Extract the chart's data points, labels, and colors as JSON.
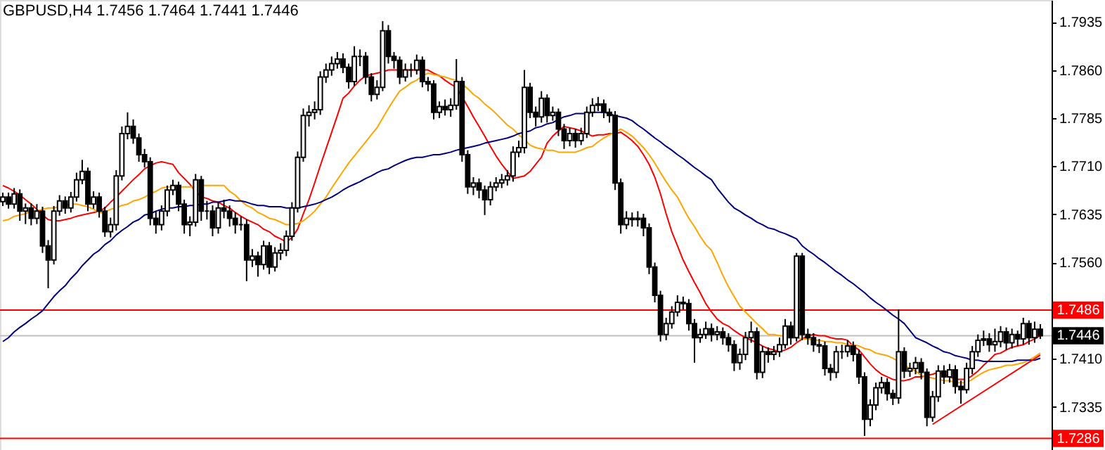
{
  "chart_data": {
    "type": "candlestick",
    "title": "GBPUSD,H4  1.7456 1.7464 1.7441 1.7446",
    "categories": [
      null,
      null,
      null,
      null,
      null,
      null,
      null,
      null,
      null,
      null,
      null,
      null,
      null,
      null,
      null,
      null,
      null,
      null,
      null,
      null,
      null,
      null,
      null,
      null,
      null,
      null,
      null,
      null,
      null,
      null,
      null,
      null,
      null,
      null,
      null,
      null,
      null,
      null,
      null,
      null,
      null,
      null,
      null,
      null,
      null,
      null,
      null,
      null,
      null,
      null,
      null,
      null,
      null,
      null,
      null,
      null,
      null,
      null,
      null,
      null,
      null,
      null,
      null,
      null,
      null,
      null,
      null,
      null,
      null,
      null,
      null,
      null,
      null,
      null,
      null,
      null,
      null,
      null,
      null,
      null,
      null,
      null,
      null,
      null,
      null,
      null,
      null,
      null,
      null,
      null,
      null,
      null,
      null,
      null,
      null,
      null,
      null,
      null,
      null,
      null,
      null,
      null,
      null,
      null,
      null,
      null,
      null,
      null,
      null,
      null,
      null,
      null,
      null,
      null,
      null,
      null,
      null,
      null,
      null,
      null,
      null,
      null,
      null,
      null,
      null,
      null,
      null,
      null,
      null,
      null,
      null,
      null,
      null,
      null,
      null,
      null,
      null,
      null,
      null,
      null,
      null,
      null,
      null,
      null,
      null,
      null,
      null,
      null,
      null,
      null,
      null,
      null,
      null,
      null,
      null,
      null,
      null,
      null,
      null,
      null,
      null,
      null,
      null,
      null,
      null,
      null,
      null,
      null,
      null,
      null,
      null,
      null,
      null,
      null,
      null,
      null,
      null,
      null,
      null,
      null,
      null,
      null,
      null,
      null
    ],
    "ohlc": [
      [
        1.7655,
        1.7669,
        1.7648,
        1.7662
      ],
      [
        1.7662,
        1.7669,
        1.7644,
        1.7651
      ],
      [
        1.7651,
        1.7676,
        1.7644,
        1.7667
      ],
      [
        1.7667,
        1.7674,
        1.7625,
        1.764
      ],
      [
        1.764,
        1.7652,
        1.762,
        1.7645
      ],
      [
        1.7645,
        1.7652,
        1.7618,
        1.7629
      ],
      [
        1.7629,
        1.7651,
        1.762,
        1.764
      ],
      [
        1.764,
        1.7647,
        1.7575,
        1.7586
      ],
      [
        1.7586,
        1.7595,
        1.752,
        1.7564
      ],
      [
        1.7564,
        1.7648,
        1.7557,
        1.764
      ],
      [
        1.764,
        1.7665,
        1.7633,
        1.7656
      ],
      [
        1.7656,
        1.7663,
        1.7636,
        1.7645
      ],
      [
        1.7645,
        1.767,
        1.7638,
        1.7662
      ],
      [
        1.7662,
        1.77,
        1.7655,
        1.7689
      ],
      [
        1.7689,
        1.772,
        1.7682,
        1.7702
      ],
      [
        1.7702,
        1.7708,
        1.764,
        1.7651
      ],
      [
        1.7651,
        1.7671,
        1.7644,
        1.7662
      ],
      [
        1.7662,
        1.7669,
        1.763,
        1.764
      ],
      [
        1.764,
        1.7647,
        1.76,
        1.7608
      ],
      [
        1.7608,
        1.763,
        1.7599,
        1.7619
      ],
      [
        1.7619,
        1.7704,
        1.761,
        1.7695
      ],
      [
        1.7695,
        1.7772,
        1.7688,
        1.7761
      ],
      [
        1.7761,
        1.7794,
        1.7752,
        1.7772
      ],
      [
        1.7772,
        1.7783,
        1.7745,
        1.7754
      ],
      [
        1.7754,
        1.7761,
        1.7717,
        1.7728
      ],
      [
        1.7728,
        1.7737,
        1.7708,
        1.7717
      ],
      [
        1.7717,
        1.7724,
        1.7618,
        1.7629
      ],
      [
        1.7629,
        1.764,
        1.7605,
        1.7619
      ],
      [
        1.7619,
        1.7649,
        1.761,
        1.764
      ],
      [
        1.764,
        1.768,
        1.7632,
        1.7673
      ],
      [
        1.7673,
        1.7689,
        1.7665,
        1.768
      ],
      [
        1.768,
        1.7686,
        1.764,
        1.7651
      ],
      [
        1.7651,
        1.7658,
        1.7605,
        1.7619
      ],
      [
        1.7619,
        1.7632,
        1.7601,
        1.7623
      ],
      [
        1.7623,
        1.7698,
        1.7616,
        1.7689
      ],
      [
        1.7689,
        1.7695,
        1.7625,
        1.764
      ],
      [
        1.764,
        1.7656,
        1.7627,
        1.764
      ],
      [
        1.764,
        1.7649,
        1.7601,
        1.7614
      ],
      [
        1.7614,
        1.7654,
        1.7605,
        1.7645
      ],
      [
        1.7645,
        1.7658,
        1.7629,
        1.764
      ],
      [
        1.764,
        1.7649,
        1.7616,
        1.7629
      ],
      [
        1.7629,
        1.7638,
        1.7605,
        1.7619
      ],
      [
        1.7619,
        1.7632,
        1.761,
        1.7619
      ],
      [
        1.7619,
        1.7627,
        1.7531,
        1.7564
      ],
      [
        1.7564,
        1.7581,
        1.7553,
        1.757
      ],
      [
        1.757,
        1.7577,
        1.7538,
        1.7557
      ],
      [
        1.7557,
        1.7594,
        1.7549,
        1.7586
      ],
      [
        1.7586,
        1.7592,
        1.7542,
        1.7553
      ],
      [
        1.7553,
        1.7584,
        1.7546,
        1.7575
      ],
      [
        1.7575,
        1.759,
        1.7564,
        1.7579
      ],
      [
        1.7579,
        1.761,
        1.757,
        1.7601
      ],
      [
        1.7601,
        1.7654,
        1.7594,
        1.7645
      ],
      [
        1.7645,
        1.7733,
        1.7638,
        1.7724
      ],
      [
        1.7724,
        1.78,
        1.7717,
        1.7789
      ],
      [
        1.7789,
        1.7805,
        1.7772,
        1.7794
      ],
      [
        1.7794,
        1.7811,
        1.7783,
        1.7798
      ],
      [
        1.7798,
        1.7858,
        1.779,
        1.7849
      ],
      [
        1.7849,
        1.787,
        1.784,
        1.786
      ],
      [
        1.786,
        1.7881,
        1.7851,
        1.787
      ],
      [
        1.787,
        1.7888,
        1.7862,
        1.7877
      ],
      [
        1.7877,
        1.7886,
        1.7855,
        1.7864
      ],
      [
        1.7864,
        1.787,
        1.7831,
        1.7842
      ],
      [
        1.7842,
        1.7897,
        1.7835,
        1.7881
      ],
      [
        1.7881,
        1.7892,
        1.7866,
        1.7881
      ],
      [
        1.7881,
        1.7888,
        1.7838,
        1.7849
      ],
      [
        1.7849,
        1.7855,
        1.7811,
        1.7822
      ],
      [
        1.7822,
        1.7844,
        1.7814,
        1.7833
      ],
      [
        1.7833,
        1.7936,
        1.7827,
        1.7921
      ],
      [
        1.7921,
        1.793,
        1.787,
        1.7881
      ],
      [
        1.7881,
        1.7888,
        1.7862,
        1.7875
      ],
      [
        1.7875,
        1.7881,
        1.7838,
        1.7849
      ],
      [
        1.7849,
        1.787,
        1.7842,
        1.786
      ],
      [
        1.786,
        1.787,
        1.7849,
        1.786
      ],
      [
        1.786,
        1.7884,
        1.7853,
        1.7875
      ],
      [
        1.7875,
        1.7881,
        1.7833,
        1.7842
      ],
      [
        1.7842,
        1.7849,
        1.7827,
        1.7838
      ],
      [
        1.7838,
        1.7844,
        1.7783,
        1.7794
      ],
      [
        1.7794,
        1.7811,
        1.7785,
        1.7803
      ],
      [
        1.7803,
        1.7814,
        1.7789,
        1.7798
      ],
      [
        1.7798,
        1.7816,
        1.7787,
        1.7805
      ],
      [
        1.7805,
        1.7877,
        1.7798,
        1.7842
      ],
      [
        1.7842,
        1.7849,
        1.7717,
        1.7728
      ],
      [
        1.7728,
        1.7735,
        1.7667,
        1.7678
      ],
      [
        1.7678,
        1.7693,
        1.7665,
        1.7684
      ],
      [
        1.7684,
        1.7691,
        1.766,
        1.7673
      ],
      [
        1.7673,
        1.768,
        1.7634,
        1.7658
      ],
      [
        1.7658,
        1.7686,
        1.7649,
        1.7678
      ],
      [
        1.7678,
        1.7693,
        1.7671,
        1.7684
      ],
      [
        1.7684,
        1.7698,
        1.7676,
        1.7689
      ],
      [
        1.7689,
        1.7704,
        1.768,
        1.7695
      ],
      [
        1.7695,
        1.7741,
        1.7686,
        1.7732
      ],
      [
        1.7732,
        1.775,
        1.7724,
        1.7739
      ],
      [
        1.7739,
        1.786,
        1.773,
        1.7833
      ],
      [
        1.7833,
        1.784,
        1.7785,
        1.7794
      ],
      [
        1.7794,
        1.7803,
        1.7772,
        1.7787
      ],
      [
        1.7787,
        1.7827,
        1.7778,
        1.7816
      ],
      [
        1.7816,
        1.7822,
        1.7778,
        1.7789
      ],
      [
        1.7789,
        1.7803,
        1.7781,
        1.7794
      ],
      [
        1.7794,
        1.78,
        1.7757,
        1.7768
      ],
      [
        1.7768,
        1.7776,
        1.7737,
        1.775
      ],
      [
        1.775,
        1.777,
        1.7741,
        1.7761
      ],
      [
        1.7761,
        1.7768,
        1.7739,
        1.775
      ],
      [
        1.775,
        1.777,
        1.7743,
        1.7761
      ],
      [
        1.7761,
        1.7803,
        1.7754,
        1.7794
      ],
      [
        1.7794,
        1.7816,
        1.7787,
        1.7805
      ],
      [
        1.7805,
        1.7818,
        1.7796,
        1.7807
      ],
      [
        1.7807,
        1.7814,
        1.7785,
        1.7794
      ],
      [
        1.7794,
        1.78,
        1.7778,
        1.7789
      ],
      [
        1.7789,
        1.7796,
        1.7673,
        1.7684
      ],
      [
        1.7684,
        1.7691,
        1.7605,
        1.7619
      ],
      [
        1.7619,
        1.764,
        1.7612,
        1.7629
      ],
      [
        1.7629,
        1.7638,
        1.7616,
        1.7627
      ],
      [
        1.7627,
        1.764,
        1.7616,
        1.7629
      ],
      [
        1.7629,
        1.7636,
        1.7601,
        1.7614
      ],
      [
        1.7614,
        1.7621,
        1.7542,
        1.7553
      ],
      [
        1.7553,
        1.756,
        1.7498,
        1.7509
      ],
      [
        1.7509,
        1.7516,
        1.7437,
        1.7448
      ],
      [
        1.7448,
        1.7474,
        1.7439,
        1.7465
      ],
      [
        1.7465,
        1.7492,
        1.7457,
        1.7483
      ],
      [
        1.7483,
        1.7509,
        1.7476,
        1.7498
      ],
      [
        1.7498,
        1.7507,
        1.7487,
        1.7496
      ],
      [
        1.7496,
        1.7503,
        1.7454,
        1.7465
      ],
      [
        1.7465,
        1.7472,
        1.7404,
        1.7443
      ],
      [
        1.7443,
        1.7457,
        1.7435,
        1.7448
      ],
      [
        1.7448,
        1.7468,
        1.7441,
        1.7457
      ],
      [
        1.7457,
        1.7465,
        1.7437,
        1.7448
      ],
      [
        1.7448,
        1.7461,
        1.7439,
        1.7452
      ],
      [
        1.7452,
        1.7459,
        1.7432,
        1.7443
      ],
      [
        1.7443,
        1.745,
        1.7421,
        1.7432
      ],
      [
        1.7432,
        1.7439,
        1.7391,
        1.7404
      ],
      [
        1.7404,
        1.7426,
        1.7393,
        1.7417
      ],
      [
        1.7417,
        1.7452,
        1.7408,
        1.7443
      ],
      [
        1.7443,
        1.7468,
        1.7435,
        1.7452
      ],
      [
        1.7452,
        1.7459,
        1.7378,
        1.7389
      ],
      [
        1.7389,
        1.743,
        1.738,
        1.7421
      ],
      [
        1.7421,
        1.7428,
        1.7404,
        1.7417
      ],
      [
        1.7417,
        1.743,
        1.7408,
        1.7421
      ],
      [
        1.7421,
        1.7443,
        1.7413,
        1.7432
      ],
      [
        1.7432,
        1.7472,
        1.7426,
        1.7461
      ],
      [
        1.7461,
        1.7468,
        1.7432,
        1.7443
      ],
      [
        1.7443,
        1.7575,
        1.7437,
        1.757
      ],
      [
        1.757,
        1.7575,
        1.7439,
        1.7448
      ],
      [
        1.7448,
        1.7457,
        1.7432,
        1.7443
      ],
      [
        1.7443,
        1.745,
        1.7421,
        1.7432
      ],
      [
        1.7432,
        1.7441,
        1.7419,
        1.743
      ],
      [
        1.743,
        1.7437,
        1.7384,
        1.7395
      ],
      [
        1.7395,
        1.7402,
        1.7376,
        1.7389
      ],
      [
        1.7389,
        1.743,
        1.738,
        1.7421
      ],
      [
        1.7421,
        1.7432,
        1.741,
        1.7421
      ],
      [
        1.7421,
        1.7439,
        1.7413,
        1.743
      ],
      [
        1.743,
        1.7437,
        1.7406,
        1.7417
      ],
      [
        1.7417,
        1.7424,
        1.7371,
        1.7382
      ],
      [
        1.7382,
        1.7389,
        1.729,
        1.7316
      ],
      [
        1.7316,
        1.7347,
        1.7305,
        1.7338
      ],
      [
        1.7338,
        1.7373,
        1.733,
        1.7365
      ],
      [
        1.7365,
        1.7382,
        1.7356,
        1.7373
      ],
      [
        1.7373,
        1.738,
        1.7345,
        1.7356
      ],
      [
        1.7356,
        1.7362,
        1.7338,
        1.7349
      ],
      [
        1.7349,
        1.7487,
        1.734,
        1.7421
      ],
      [
        1.7421,
        1.7428,
        1.738,
        1.7391
      ],
      [
        1.7391,
        1.7404,
        1.7382,
        1.7395
      ],
      [
        1.7395,
        1.7413,
        1.7386,
        1.7404
      ],
      [
        1.7404,
        1.7411,
        1.7378,
        1.7389
      ],
      [
        1.7389,
        1.7395,
        1.7305,
        1.7319
      ],
      [
        1.7319,
        1.736,
        1.7312,
        1.7351
      ],
      [
        1.7351,
        1.74,
        1.7343,
        1.7391
      ],
      [
        1.7391,
        1.74,
        1.7371,
        1.7382
      ],
      [
        1.7382,
        1.7402,
        1.7373,
        1.7393
      ],
      [
        1.7393,
        1.74,
        1.7356,
        1.7367
      ],
      [
        1.7367,
        1.7376,
        1.734,
        1.7362
      ],
      [
        1.7362,
        1.7404,
        1.7356,
        1.7395
      ],
      [
        1.7395,
        1.743,
        1.7386,
        1.7421
      ],
      [
        1.7421,
        1.7448,
        1.7413,
        1.7439
      ],
      [
        1.7439,
        1.7454,
        1.743,
        1.7441
      ],
      [
        1.7441,
        1.745,
        1.7421,
        1.7432
      ],
      [
        1.7432,
        1.7457,
        1.7421,
        1.7437
      ],
      [
        1.7437,
        1.7461,
        1.7428,
        1.7452
      ],
      [
        1.7452,
        1.7459,
        1.7424,
        1.7435
      ],
      [
        1.7435,
        1.7457,
        1.7426,
        1.7448
      ],
      [
        1.7448,
        1.7454,
        1.743,
        1.7441
      ],
      [
        1.7441,
        1.7474,
        1.7432,
        1.7465
      ],
      [
        1.7465,
        1.747,
        1.7432,
        1.7443
      ],
      [
        1.7443,
        1.7468,
        1.7435,
        1.7456
      ],
      [
        1.7456,
        1.7464,
        1.7441,
        1.7446
      ]
    ],
    "series": [
      {
        "type": "line",
        "color": "#ff0000",
        "values": [
          1.768,
          1.7676,
          1.7671,
          1.7665,
          1.7658,
          1.7651,
          1.7643,
          1.7634,
          1.7627,
          1.7625,
          1.7625,
          1.7627,
          1.7629,
          1.7632,
          1.7634,
          1.7636,
          1.7638,
          1.764,
          1.7645,
          1.7654,
          1.7662,
          1.7671,
          1.768,
          1.7689,
          1.7697,
          1.7706,
          1.7711,
          1.7715,
          1.7717,
          1.7715,
          1.7713,
          1.77,
          1.7691,
          1.7682,
          1.7671,
          1.7662,
          1.766,
          1.7656,
          1.7654,
          1.7649,
          1.7645,
          1.7638,
          1.7632,
          1.7627,
          1.7623,
          1.7619,
          1.7612,
          1.7608,
          1.7601,
          1.7597,
          1.7592,
          1.7599,
          1.7612,
          1.7636,
          1.7658,
          1.7684,
          1.7711,
          1.7737,
          1.7763,
          1.7789,
          1.7816,
          1.7824,
          1.7835,
          1.7844,
          1.7851,
          1.7853,
          1.7855,
          1.7857,
          1.786,
          1.786,
          1.786,
          1.786,
          1.786,
          1.786,
          1.786,
          1.786,
          1.7855,
          1.7851,
          1.7844,
          1.7838,
          1.7833,
          1.7818,
          1.7803,
          1.7787,
          1.7772,
          1.7757,
          1.7741,
          1.7726,
          1.7713,
          1.7702,
          1.7691,
          1.7693,
          1.7695,
          1.7702,
          1.7713,
          1.7724,
          1.7746,
          1.7757,
          1.7765,
          1.7772,
          1.777,
          1.7768,
          1.7765,
          1.7761,
          1.7757,
          1.7759,
          1.7759,
          1.7761,
          1.7761,
          1.7763,
          1.7757,
          1.775,
          1.7741,
          1.7728,
          1.7713,
          1.7693,
          1.7667,
          1.7636,
          1.7608,
          1.7586,
          1.7564,
          1.7546,
          1.7529,
          1.7513,
          1.7496,
          1.7483,
          1.7472,
          1.7465,
          1.7461,
          1.7454,
          1.7448,
          1.7443,
          1.7439,
          1.7435,
          1.743,
          1.7426,
          1.7424,
          1.7421,
          1.7424,
          1.7428,
          1.7435,
          1.7441,
          1.7446,
          1.7448,
          1.7446,
          1.7446,
          1.7443,
          1.7441,
          1.7441,
          1.7439,
          1.743,
          1.7424,
          1.7413,
          1.7402,
          1.7393,
          1.7386,
          1.7382,
          1.7378,
          1.7376,
          1.7376,
          1.7378,
          1.7382,
          1.7382,
          1.7384,
          1.7386,
          1.7389,
          1.7386,
          1.7382,
          1.7378,
          1.7378,
          1.7378,
          1.7384,
          1.7391,
          1.74,
          1.7408,
          1.7417,
          1.7419,
          1.7424,
          1.7428,
          1.743,
          1.7432,
          1.7437,
          1.7441,
          1.7446
        ]
      },
      {
        "type": "line",
        "color": "#ffa500",
        "values": [
          1.7625,
          1.7627,
          1.7632,
          1.7634,
          1.7636,
          1.764,
          1.764,
          1.7643,
          1.7645,
          1.7645,
          1.7647,
          1.7649,
          1.7651,
          1.7651,
          1.7649,
          1.7647,
          1.7643,
          1.7638,
          1.7638,
          1.7643,
          1.7645,
          1.7649,
          1.7651,
          1.7656,
          1.7658,
          1.7662,
          1.7667,
          1.7671,
          1.7676,
          1.7678,
          1.7678,
          1.7678,
          1.7678,
          1.7678,
          1.7678,
          1.768,
          1.768,
          1.768,
          1.768,
          1.768,
          1.7671,
          1.7665,
          1.7656,
          1.7649,
          1.7645,
          1.7638,
          1.7634,
          1.7629,
          1.7627,
          1.7623,
          1.7619,
          1.7619,
          1.7621,
          1.7625,
          1.7632,
          1.764,
          1.7651,
          1.7662,
          1.7676,
          1.7689,
          1.7702,
          1.7715,
          1.7726,
          1.7737,
          1.7748,
          1.7759,
          1.777,
          1.7785,
          1.78,
          1.7814,
          1.7827,
          1.7833,
          1.784,
          1.7844,
          1.7851,
          1.7855,
          1.7853,
          1.7851,
          1.7849,
          1.7846,
          1.7844,
          1.7838,
          1.7831,
          1.7822,
          1.7816,
          1.7807,
          1.78,
          1.7792,
          1.7783,
          1.7774,
          1.7768,
          1.7759,
          1.7752,
          1.7743,
          1.7739,
          1.7737,
          1.7735,
          1.7735,
          1.7732,
          1.7732,
          1.7732,
          1.7732,
          1.7735,
          1.7739,
          1.7741,
          1.7748,
          1.7754,
          1.7759,
          1.7763,
          1.7768,
          1.7763,
          1.7757,
          1.7748,
          1.7739,
          1.7728,
          1.7715,
          1.77,
          1.7686,
          1.7673,
          1.7662,
          1.7645,
          1.7629,
          1.7616,
          1.7601,
          1.7588,
          1.7579,
          1.756,
          1.754,
          1.7522,
          1.7507,
          1.7492,
          1.7483,
          1.7474,
          1.7465,
          1.7457,
          1.7448,
          1.7448,
          1.7446,
          1.7446,
          1.7443,
          1.7443,
          1.7441,
          1.7441,
          1.7439,
          1.7439,
          1.7437,
          1.7437,
          1.7435,
          1.7435,
          1.7432,
          1.7432,
          1.743,
          1.7426,
          1.7424,
          1.7419,
          1.7417,
          1.7415,
          1.7411,
          1.7406,
          1.74,
          1.7395,
          1.7391,
          1.7384,
          1.7382,
          1.738,
          1.7378,
          1.7376,
          1.7376,
          1.7373,
          1.7373,
          1.7373,
          1.7378,
          1.7384,
          1.7389,
          1.7393,
          1.7395,
          1.7397,
          1.74,
          1.74,
          1.7402,
          1.7404,
          1.7408,
          1.7413,
          1.7419
        ]
      },
      {
        "type": "line",
        "color": "#000080",
        "values": [
          1.7437,
          1.7443,
          1.7452,
          1.7459,
          1.7465,
          1.7472,
          1.7478,
          1.7485,
          1.7496,
          1.7507,
          1.7516,
          1.7524,
          1.7535,
          1.7544,
          1.7555,
          1.7564,
          1.7573,
          1.7579,
          1.7588,
          1.7594,
          1.7603,
          1.761,
          1.7616,
          1.7623,
          1.7627,
          1.7634,
          1.7636,
          1.764,
          1.7643,
          1.7645,
          1.7645,
          1.7647,
          1.7647,
          1.7649,
          1.7649,
          1.7651,
          1.7651,
          1.7654,
          1.7654,
          1.7656,
          1.7658,
          1.7656,
          1.7656,
          1.7654,
          1.7651,
          1.7649,
          1.7649,
          1.7647,
          1.7647,
          1.7647,
          1.7645,
          1.7645,
          1.7645,
          1.7647,
          1.7649,
          1.7651,
          1.7654,
          1.7658,
          1.7662,
          1.7667,
          1.7673,
          1.7678,
          1.7682,
          1.7686,
          1.7691,
          1.7695,
          1.77,
          1.7704,
          1.7706,
          1.7711,
          1.7715,
          1.7719,
          1.7722,
          1.7724,
          1.7724,
          1.7726,
          1.7728,
          1.7728,
          1.773,
          1.7732,
          1.7735,
          1.7737,
          1.7739,
          1.7741,
          1.7743,
          1.7746,
          1.7748,
          1.775,
          1.7752,
          1.7754,
          1.7757,
          1.7761,
          1.7763,
          1.7765,
          1.777,
          1.7772,
          1.7776,
          1.7778,
          1.7783,
          1.7787,
          1.7789,
          1.7792,
          1.7792,
          1.7792,
          1.7794,
          1.7794,
          1.7794,
          1.7792,
          1.7789,
          1.7787,
          1.7785,
          1.7781,
          1.7774,
          1.7768,
          1.7761,
          1.7754,
          1.7748,
          1.7741,
          1.7735,
          1.7728,
          1.7722,
          1.7715,
          1.7708,
          1.7702,
          1.7695,
          1.7689,
          1.7676,
          1.7665,
          1.7654,
          1.7645,
          1.764,
          1.7634,
          1.7629,
          1.7623,
          1.7619,
          1.7614,
          1.7612,
          1.7608,
          1.7605,
          1.7601,
          1.7597,
          1.7586,
          1.7579,
          1.7573,
          1.7566,
          1.756,
          1.7553,
          1.7546,
          1.754,
          1.7533,
          1.7527,
          1.752,
          1.7513,
          1.7505,
          1.7498,
          1.7492,
          1.7485,
          1.7478,
          1.7472,
          1.7465,
          1.7454,
          1.7443,
          1.7439,
          1.7435,
          1.743,
          1.7426,
          1.7421,
          1.7419,
          1.7415,
          1.7413,
          1.7411,
          1.7408,
          1.7408,
          1.7406,
          1.7406,
          1.7406,
          1.7406,
          1.7406,
          1.7406,
          1.7408,
          1.7408,
          1.7408,
          1.7408,
          1.7411
        ]
      },
      {
        "type": "line",
        "color": "#ff0000",
        "values": [
          null,
          null,
          null,
          null,
          null,
          null,
          null,
          null,
          null,
          null,
          null,
          null,
          null,
          null,
          null,
          null,
          null,
          null,
          null,
          null,
          null,
          null,
          null,
          null,
          null,
          null,
          null,
          null,
          null,
          null,
          null,
          null,
          null,
          null,
          null,
          null,
          null,
          null,
          null,
          null,
          null,
          null,
          null,
          null,
          null,
          null,
          null,
          null,
          null,
          null,
          null,
          null,
          null,
          null,
          null,
          null,
          null,
          null,
          null,
          null,
          null,
          null,
          null,
          null,
          null,
          null,
          null,
          null,
          null,
          null,
          null,
          null,
          null,
          null,
          null,
          null,
          null,
          null,
          null,
          null,
          null,
          null,
          null,
          null,
          null,
          null,
          null,
          null,
          null,
          null,
          null,
          null,
          null,
          null,
          null,
          null,
          null,
          null,
          null,
          null,
          null,
          null,
          null,
          null,
          null,
          null,
          null,
          null,
          null,
          null,
          null,
          null,
          null,
          null,
          null,
          null,
          null,
          null,
          null,
          null,
          null,
          null,
          null,
          null,
          null,
          null,
          null,
          null,
          null,
          null,
          null,
          null,
          null,
          null,
          null,
          null,
          null,
          null,
          null,
          null,
          null,
          null,
          null,
          null,
          null,
          null,
          null,
          null,
          null,
          null,
          null,
          null,
          null,
          null,
          null,
          null,
          null,
          null,
          null,
          null,
          null,
          null,
          null,
          null,
          1.7308,
          null,
          null,
          null,
          null,
          null,
          null,
          null,
          null,
          null,
          null,
          null,
          null,
          null,
          null,
          null,
          null,
          null,
          null,
          1.7416
        ]
      }
    ],
    "ylim": [
      1.7268,
      1.7969
    ],
    "yticks": [
      1.7935,
      {
        "value": 1.786,
        "label": "1.7860"
      },
      1.7785,
      {
        "value": 1.771,
        "label": "1.7710"
      },
      1.7635,
      {
        "value": 1.756,
        "label": "1.7560"
      },
      {
        "value": 1.741,
        "label": "1.7410"
      },
      1.7335
    ],
    "tick_labels": "y",
    "ref_lines": [
      {
        "axis": "y",
        "value": 1.7486,
        "label": "1.7486",
        "color": "#ff0000"
      },
      {
        "axis": "y",
        "value": 1.7446,
        "label": "1.7446",
        "color": "#c0c0c0"
      },
      {
        "axis": "y",
        "value": 1.7286,
        "label": "1.7286",
        "color": "#ff0000"
      }
    ]
  }
}
